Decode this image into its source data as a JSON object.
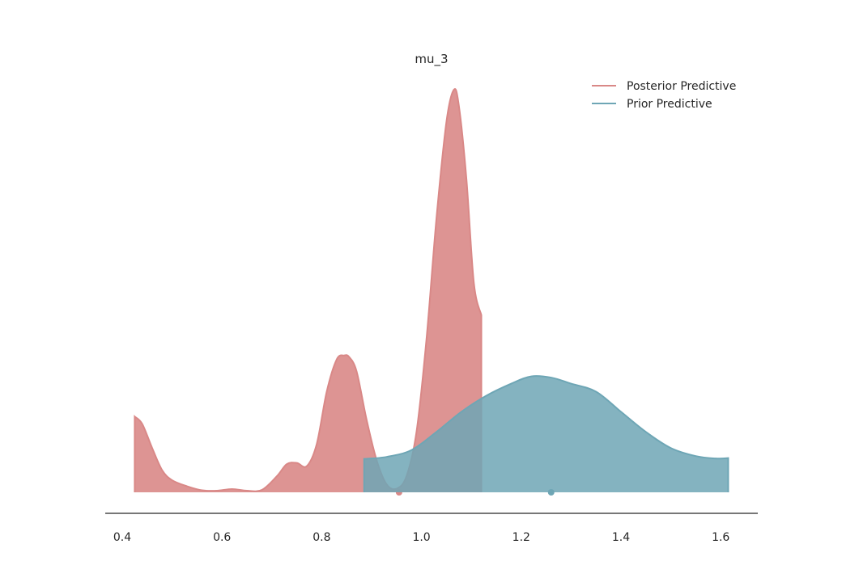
{
  "chart_data": {
    "type": "area",
    "title": "mu_3",
    "xlabel": "",
    "ylabel": "",
    "xlim": [
      0.37,
      1.68
    ],
    "ylim": [
      0,
      1.0
    ],
    "grid": false,
    "legend_position": "top-right",
    "x_ticks": [
      "0.4",
      "0.6",
      "0.8",
      "1.0",
      "1.2",
      "1.4",
      "1.6"
    ],
    "series": [
      {
        "name": "Posterior Predictive",
        "color": "#d98887",
        "x": [
          0.425,
          0.44,
          0.46,
          0.48,
          0.5,
          0.53,
          0.56,
          0.59,
          0.62,
          0.65,
          0.68,
          0.71,
          0.73,
          0.75,
          0.77,
          0.79,
          0.81,
          0.83,
          0.845,
          0.855,
          0.87,
          0.89,
          0.91,
          0.93,
          0.95,
          0.97,
          0.99,
          1.01,
          1.03,
          1.05,
          1.065,
          1.075,
          1.09,
          1.105,
          1.12
        ],
        "y": [
          0.188,
          0.17,
          0.11,
          0.055,
          0.03,
          0.015,
          0.005,
          0.004,
          0.008,
          0.004,
          0.006,
          0.04,
          0.07,
          0.073,
          0.065,
          0.12,
          0.25,
          0.33,
          0.34,
          0.336,
          0.3,
          0.18,
          0.08,
          0.02,
          0.009,
          0.04,
          0.15,
          0.38,
          0.68,
          0.92,
          1.0,
          0.96,
          0.78,
          0.52,
          0.44
        ],
        "point_estimate": 0.955
      },
      {
        "name": "Prior Predictive",
        "color": "#6ea6b5",
        "x": [
          0.885,
          0.93,
          0.98,
          1.03,
          1.08,
          1.13,
          1.18,
          1.22,
          1.26,
          1.3,
          1.35,
          1.4,
          1.45,
          1.5,
          1.55,
          1.59,
          1.615
        ],
        "y": [
          0.083,
          0.088,
          0.105,
          0.15,
          0.2,
          0.24,
          0.27,
          0.288,
          0.285,
          0.27,
          0.25,
          0.2,
          0.15,
          0.11,
          0.09,
          0.084,
          0.085
        ],
        "point_estimate": 1.26
      }
    ]
  }
}
